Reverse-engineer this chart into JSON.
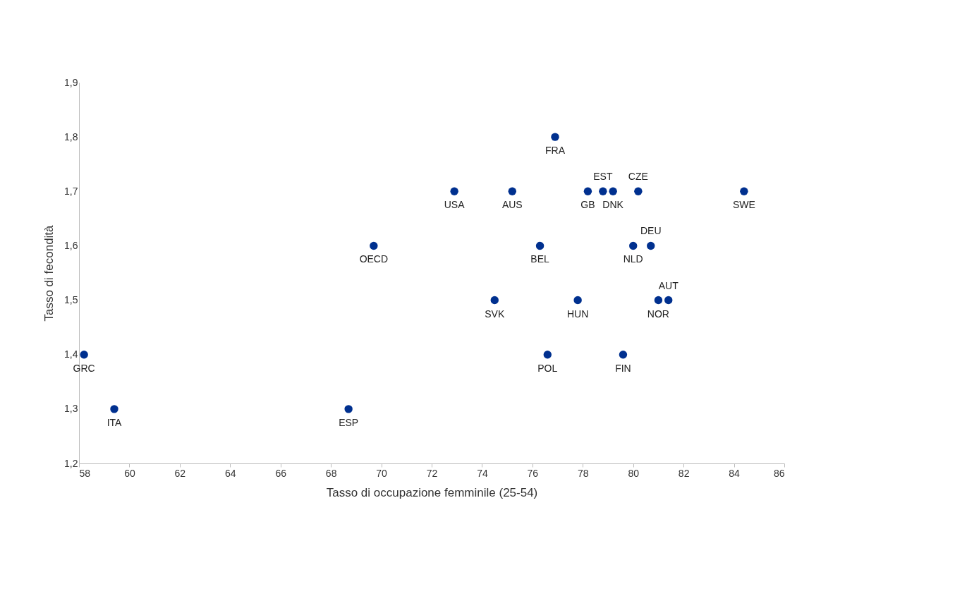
{
  "chart_data": {
    "type": "scatter",
    "xlabel": "Tasso di occupazione femminile (25-54)",
    "ylabel": "Tasso di fecondità",
    "x": [
      58.2,
      59.4,
      68.7,
      69.7,
      72.9,
      75.2,
      74.5,
      76.3,
      76.9,
      76.6,
      77.8,
      78.2,
      78.8,
      79.2,
      79.6,
      80.0,
      80.2,
      80.7,
      81.0,
      81.4,
      84.4
    ],
    "values": [
      1.4,
      1.3,
      1.3,
      1.6,
      1.7,
      1.7,
      1.5,
      1.6,
      1.8,
      1.4,
      1.5,
      1.7,
      1.7,
      1.7,
      1.4,
      1.6,
      1.7,
      1.6,
      1.5,
      1.5,
      1.7
    ],
    "annotations": [
      {
        "text": "GRC",
        "x": 58.2,
        "y": 1.4
      },
      {
        "text": "ITA",
        "x": 59.4,
        "y": 1.3
      },
      {
        "text": "ESP",
        "x": 68.7,
        "y": 1.3
      },
      {
        "text": "OECD",
        "x": 69.7,
        "y": 1.6
      },
      {
        "text": "USA",
        "x": 72.9,
        "y": 1.7
      },
      {
        "text": "AUS",
        "x": 75.2,
        "y": 1.7
      },
      {
        "text": "SVK",
        "x": 74.5,
        "y": 1.5
      },
      {
        "text": "BEL",
        "x": 76.3,
        "y": 1.6
      },
      {
        "text": "FRA",
        "x": 76.9,
        "y": 1.8
      },
      {
        "text": "POL",
        "x": 76.6,
        "y": 1.4
      },
      {
        "text": "HUN",
        "x": 77.8,
        "y": 1.5
      },
      {
        "text": "GB",
        "x": 78.2,
        "y": 1.7
      },
      {
        "text": "EST",
        "x": 78.8,
        "y": 1.7
      },
      {
        "text": "DNK",
        "x": 79.2,
        "y": 1.7
      },
      {
        "text": "FIN",
        "x": 79.6,
        "y": 1.4
      },
      {
        "text": "NLD",
        "x": 80.0,
        "y": 1.6
      },
      {
        "text": "CZE",
        "x": 80.2,
        "y": 1.7
      },
      {
        "text": "DEU",
        "x": 80.7,
        "y": 1.6
      },
      {
        "text": "NOR",
        "x": 81.0,
        "y": 1.5
      },
      {
        "text": "AUT",
        "x": 81.4,
        "y": 1.5
      },
      {
        "text": "SWE",
        "x": 84.4,
        "y": 1.7
      }
    ],
    "color": "#00308f",
    "marker": "circle",
    "grid": false,
    "xlim": [
      58,
      86
    ],
    "xticks": [
      58,
      60,
      62,
      64,
      66,
      68,
      70,
      72,
      74,
      76,
      78,
      80,
      82,
      84,
      86
    ],
    "ylim": [
      1.2,
      1.9
    ],
    "yticks": [
      {
        "value": 1.2,
        "label": "1,2"
      },
      {
        "value": 1.3,
        "label": "1,3"
      },
      {
        "value": 1.4,
        "label": "1,4"
      },
      {
        "value": 1.5,
        "label": "1,5"
      },
      {
        "value": 1.6,
        "label": "1,6"
      },
      {
        "value": 1.7,
        "label": "1,7"
      },
      {
        "value": 1.8,
        "label": "1,8"
      },
      {
        "value": 1.9,
        "label": "1,9"
      }
    ]
  }
}
